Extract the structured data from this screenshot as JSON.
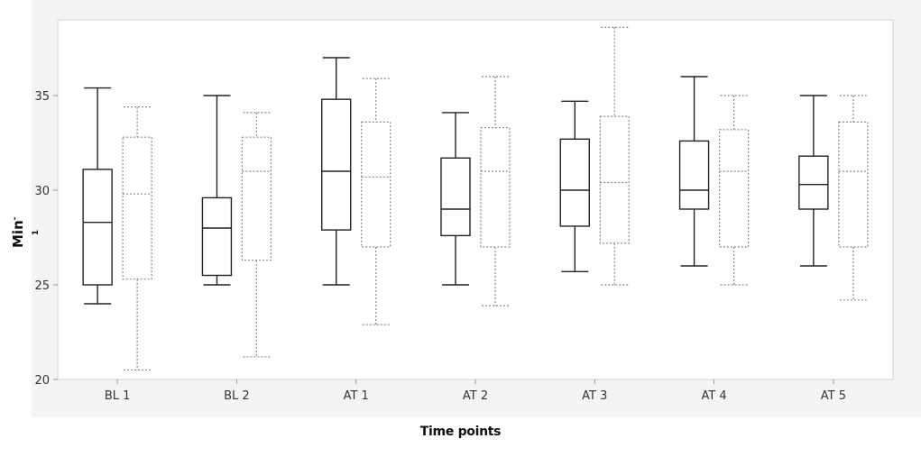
{
  "chart_data": {
    "type": "box",
    "title": "",
    "xlabel": "Time points",
    "ylabel": "Min",
    "ylabel_superscript": "-1",
    "ylim": [
      20,
      39
    ],
    "yticks": [
      20,
      25,
      30,
      35
    ],
    "grid": false,
    "categories": [
      "BL 1",
      "BL 2",
      "AT 1",
      "AT 2",
      "AT 3",
      "AT 4",
      "AT 5"
    ],
    "series": [
      {
        "style": "solid",
        "color": "#222222",
        "boxes": [
          {
            "min": 24.0,
            "q1": 25.0,
            "median": 28.3,
            "q3": 31.1,
            "max": 35.4
          },
          {
            "min": 25.0,
            "q1": 25.5,
            "median": 28.0,
            "q3": 29.6,
            "max": 35.0
          },
          {
            "min": 25.0,
            "q1": 27.9,
            "median": 31.0,
            "q3": 34.8,
            "max": 37.0
          },
          {
            "min": 25.0,
            "q1": 27.6,
            "median": 29.0,
            "q3": 31.7,
            "max": 34.1
          },
          {
            "min": 25.7,
            "q1": 28.1,
            "median": 30.0,
            "q3": 32.7,
            "max": 34.7
          },
          {
            "min": 26.0,
            "q1": 29.0,
            "median": 30.0,
            "q3": 32.6,
            "max": 36.0
          },
          {
            "min": 26.0,
            "q1": 29.0,
            "median": 30.3,
            "q3": 31.8,
            "max": 35.0
          }
        ]
      },
      {
        "style": "dotted",
        "color": "#888888",
        "boxes": [
          {
            "min": 20.5,
            "q1": 25.3,
            "median": 29.8,
            "q3": 32.8,
            "max": 34.4
          },
          {
            "min": 21.2,
            "q1": 26.3,
            "median": 31.0,
            "q3": 32.8,
            "max": 34.1
          },
          {
            "min": 22.9,
            "q1": 27.0,
            "median": 30.7,
            "q3": 33.6,
            "max": 35.9
          },
          {
            "min": 23.9,
            "q1": 27.0,
            "median": 31.0,
            "q3": 33.3,
            "max": 36.0
          },
          {
            "min": 25.0,
            "q1": 27.2,
            "median": 30.4,
            "q3": 33.9,
            "max": 38.6
          },
          {
            "min": 25.0,
            "q1": 27.0,
            "median": 31.0,
            "q3": 33.2,
            "max": 35.0
          },
          {
            "min": 24.2,
            "q1": 27.0,
            "median": 31.0,
            "q3": 33.6,
            "max": 35.0
          }
        ]
      }
    ]
  }
}
